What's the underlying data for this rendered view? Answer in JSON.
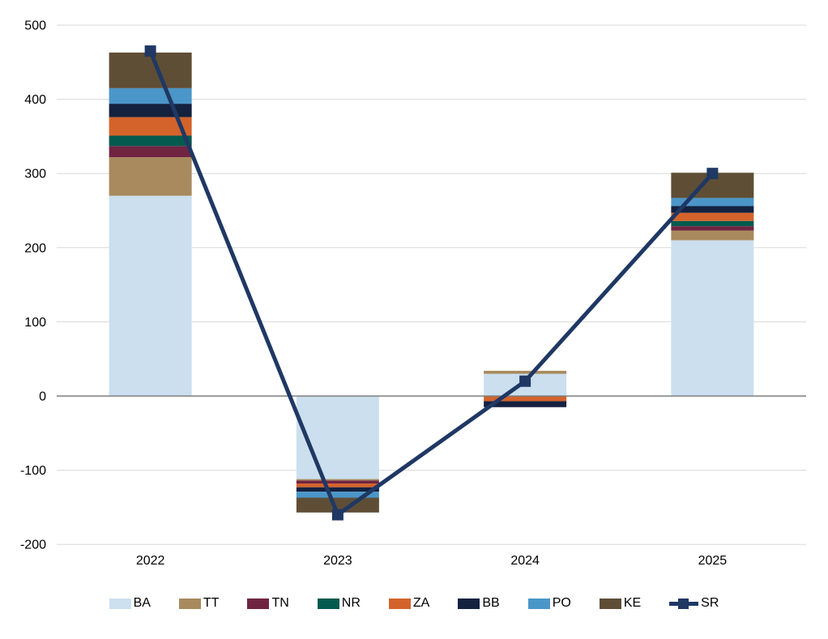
{
  "chart": {
    "background": "#ffffff",
    "grid_color": "#d9d9d9",
    "zero_line_color": "#7f7f7f",
    "text_color": "#000000"
  },
  "chart_data": {
    "type": "bar",
    "subtype": "stacked-bars-with-line-overlay",
    "title": "",
    "xlabel": "",
    "ylabel": "",
    "categories": [
      "2022",
      "2023",
      "2024",
      "2025"
    ],
    "series": [
      {
        "name": "BA",
        "color": "#cbdfee",
        "values": [
          270,
          -112,
          30,
          210
        ]
      },
      {
        "name": "TT",
        "color": "#a88a5e",
        "values": [
          52,
          -2,
          4,
          13
        ]
      },
      {
        "name": "TN",
        "color": "#712442",
        "values": [
          15,
          -4,
          0,
          6
        ]
      },
      {
        "name": "NR",
        "color": "#045a4e",
        "values": [
          14,
          0,
          0,
          7
        ]
      },
      {
        "name": "ZA",
        "color": "#d3632b",
        "values": [
          25,
          -5,
          -7,
          11
        ]
      },
      {
        "name": "BB",
        "color": "#14213f",
        "values": [
          18,
          -6,
          -8,
          9
        ]
      },
      {
        "name": "PO",
        "color": "#4b96c8",
        "values": [
          21,
          -8,
          0,
          11
        ]
      },
      {
        "name": "KE",
        "color": "#5f4e36",
        "values": [
          48,
          -20,
          0,
          34
        ]
      }
    ],
    "line_series": {
      "name": "SR",
      "color": "#1f3864",
      "marker": "square",
      "values": [
        465,
        -160,
        20,
        300
      ]
    },
    "yticks": [
      500,
      400,
      300,
      200,
      100,
      0,
      -100,
      -200
    ],
    "ylim": [
      -200,
      500
    ],
    "grid": true,
    "legend_position": "bottom"
  }
}
